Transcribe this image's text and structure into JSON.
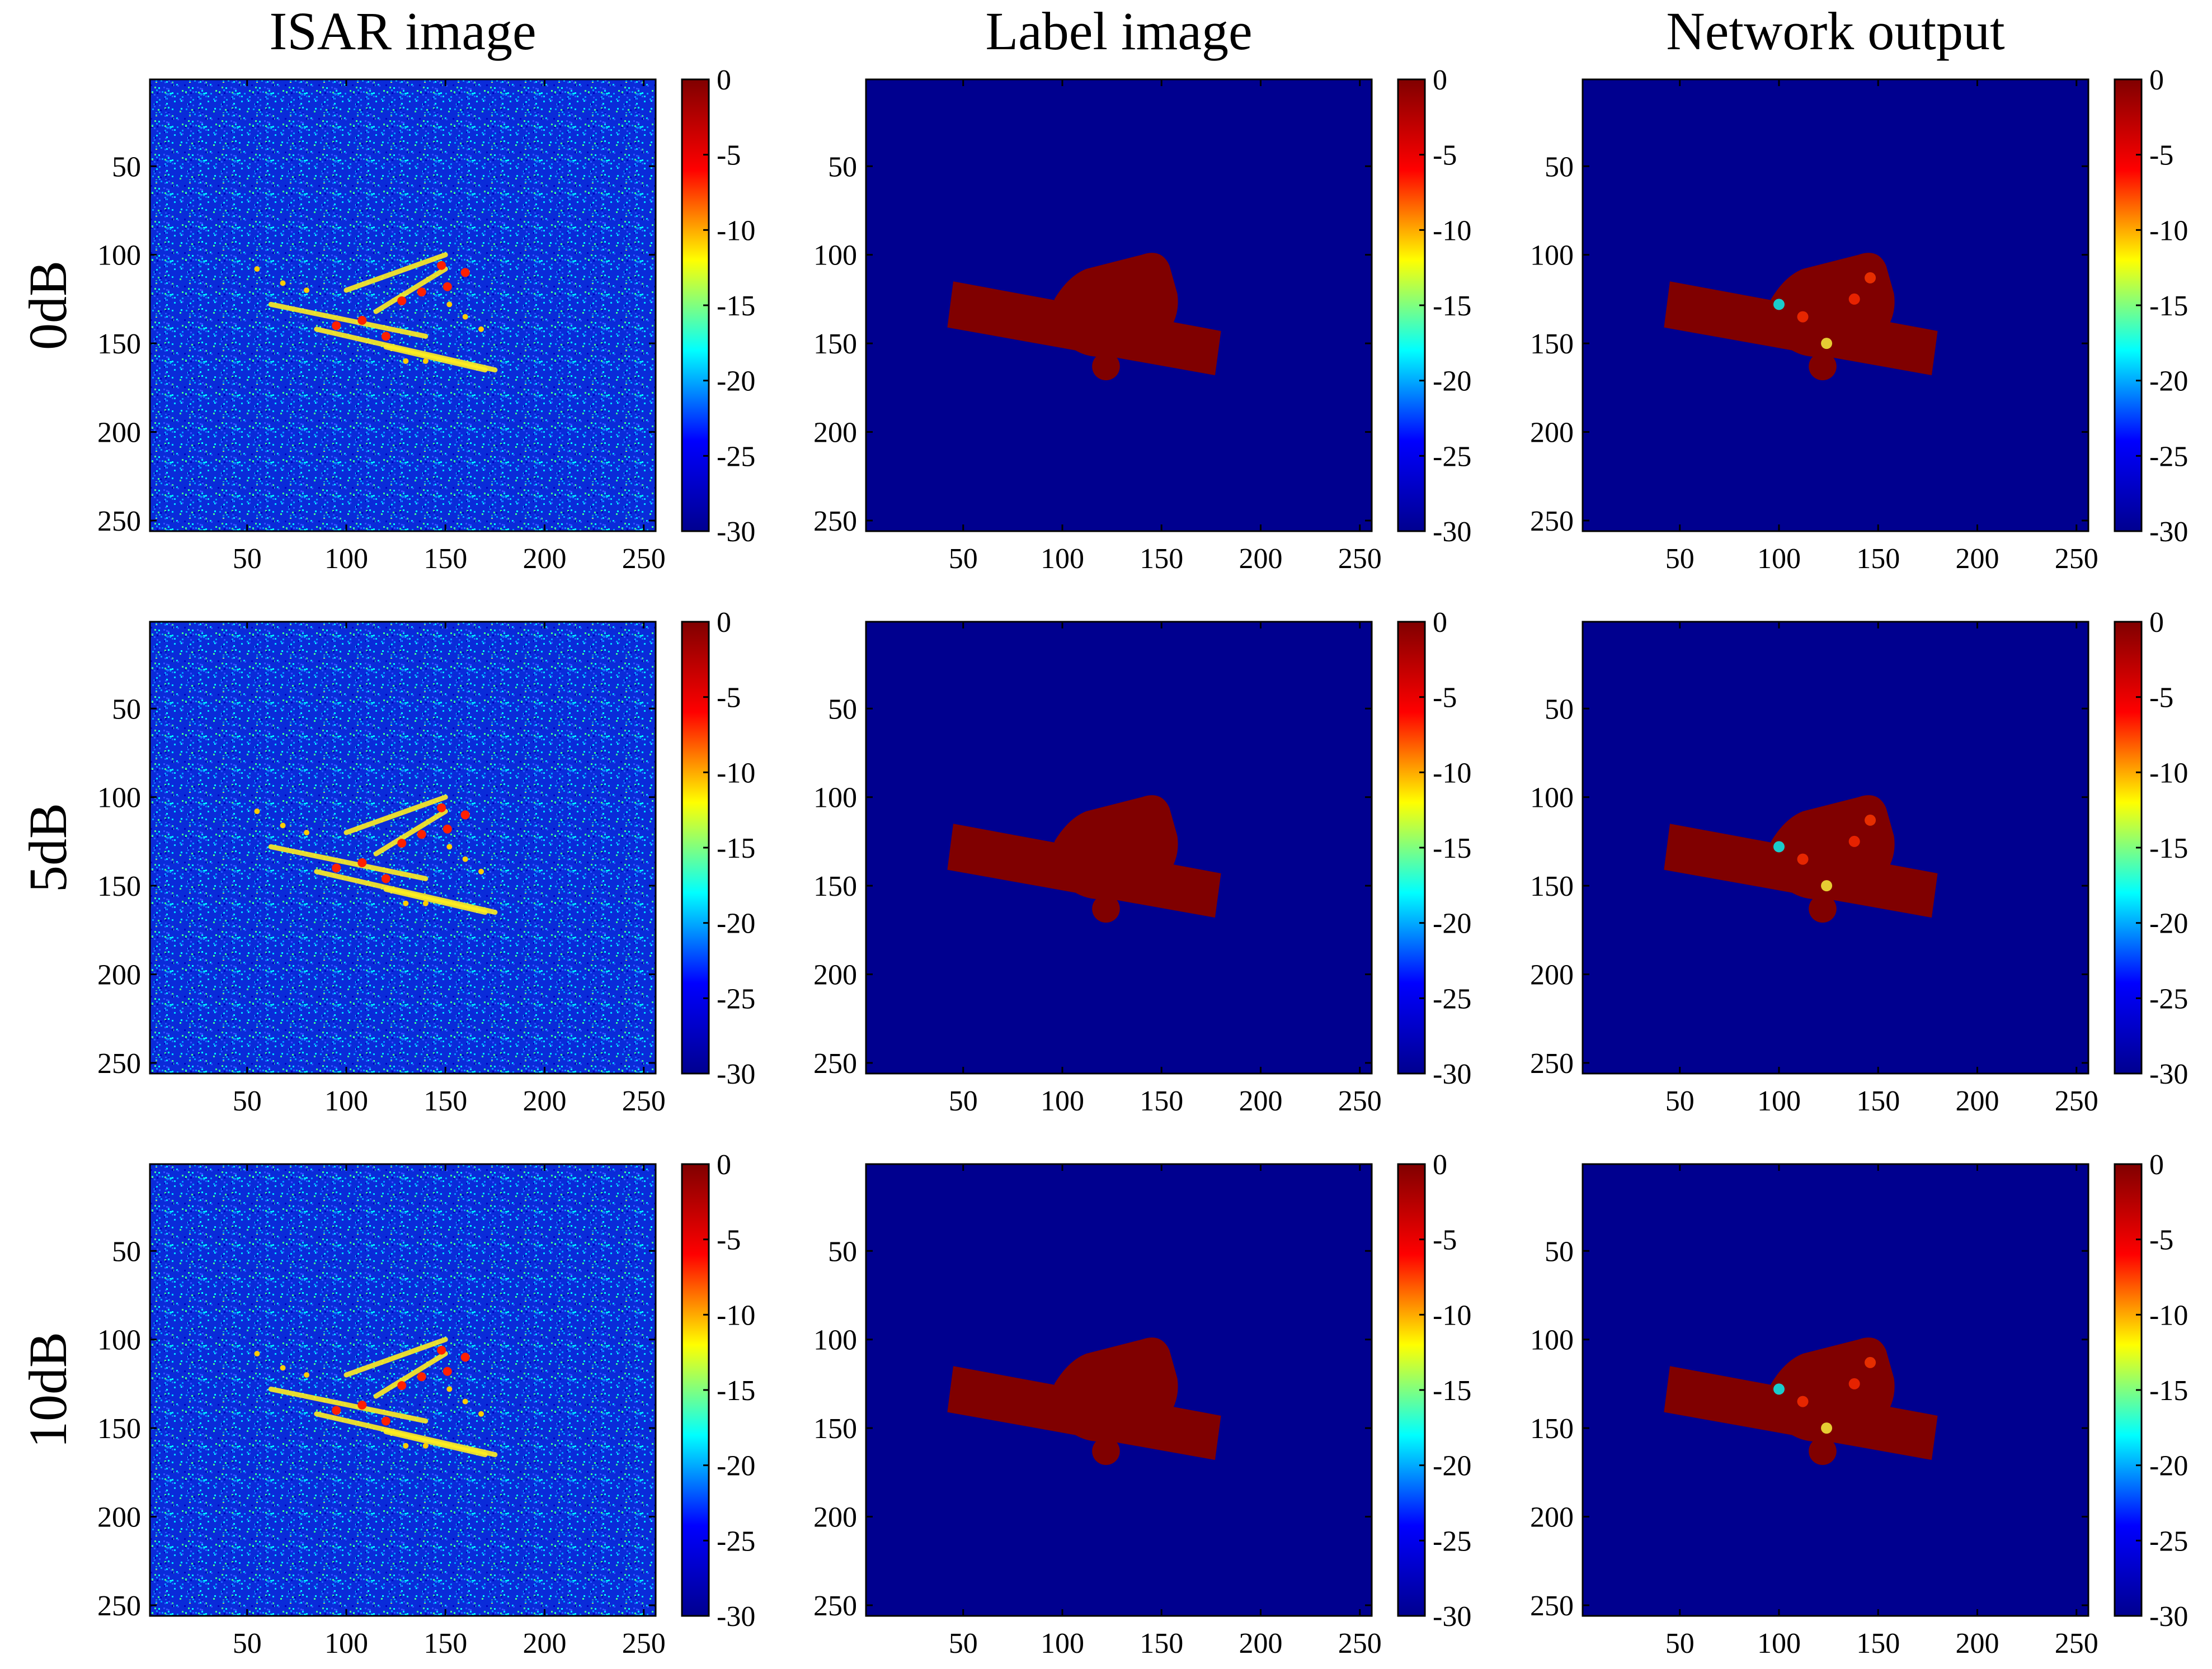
{
  "chart_data": {
    "type": "heatmap",
    "columns": [
      "ISAR image",
      "Label image",
      "Network output"
    ],
    "rows": [
      "0dB",
      "5dB",
      "10dB"
    ],
    "x_ticks": [
      50,
      100,
      150,
      200,
      250
    ],
    "y_ticks": [
      50,
      100,
      150,
      200,
      250
    ],
    "xlim": [
      1,
      256
    ],
    "ylim": [
      1,
      256
    ],
    "colorbar": {
      "range": [
        -30,
        0
      ],
      "ticks": [
        0,
        -5,
        -10,
        -15,
        -20,
        -25,
        -30
      ],
      "tick_labels": [
        "0",
        "-5",
        "-10",
        "-15",
        "-20",
        "-25",
        "-30"
      ],
      "colormap": "jet"
    },
    "colormap_stops": [
      "#00008f",
      "#0000ff",
      "#00ffff",
      "#ffff00",
      "#ff0000",
      "#800000"
    ],
    "colors": {
      "background": "#00008f",
      "target": "#800000"
    }
  }
}
